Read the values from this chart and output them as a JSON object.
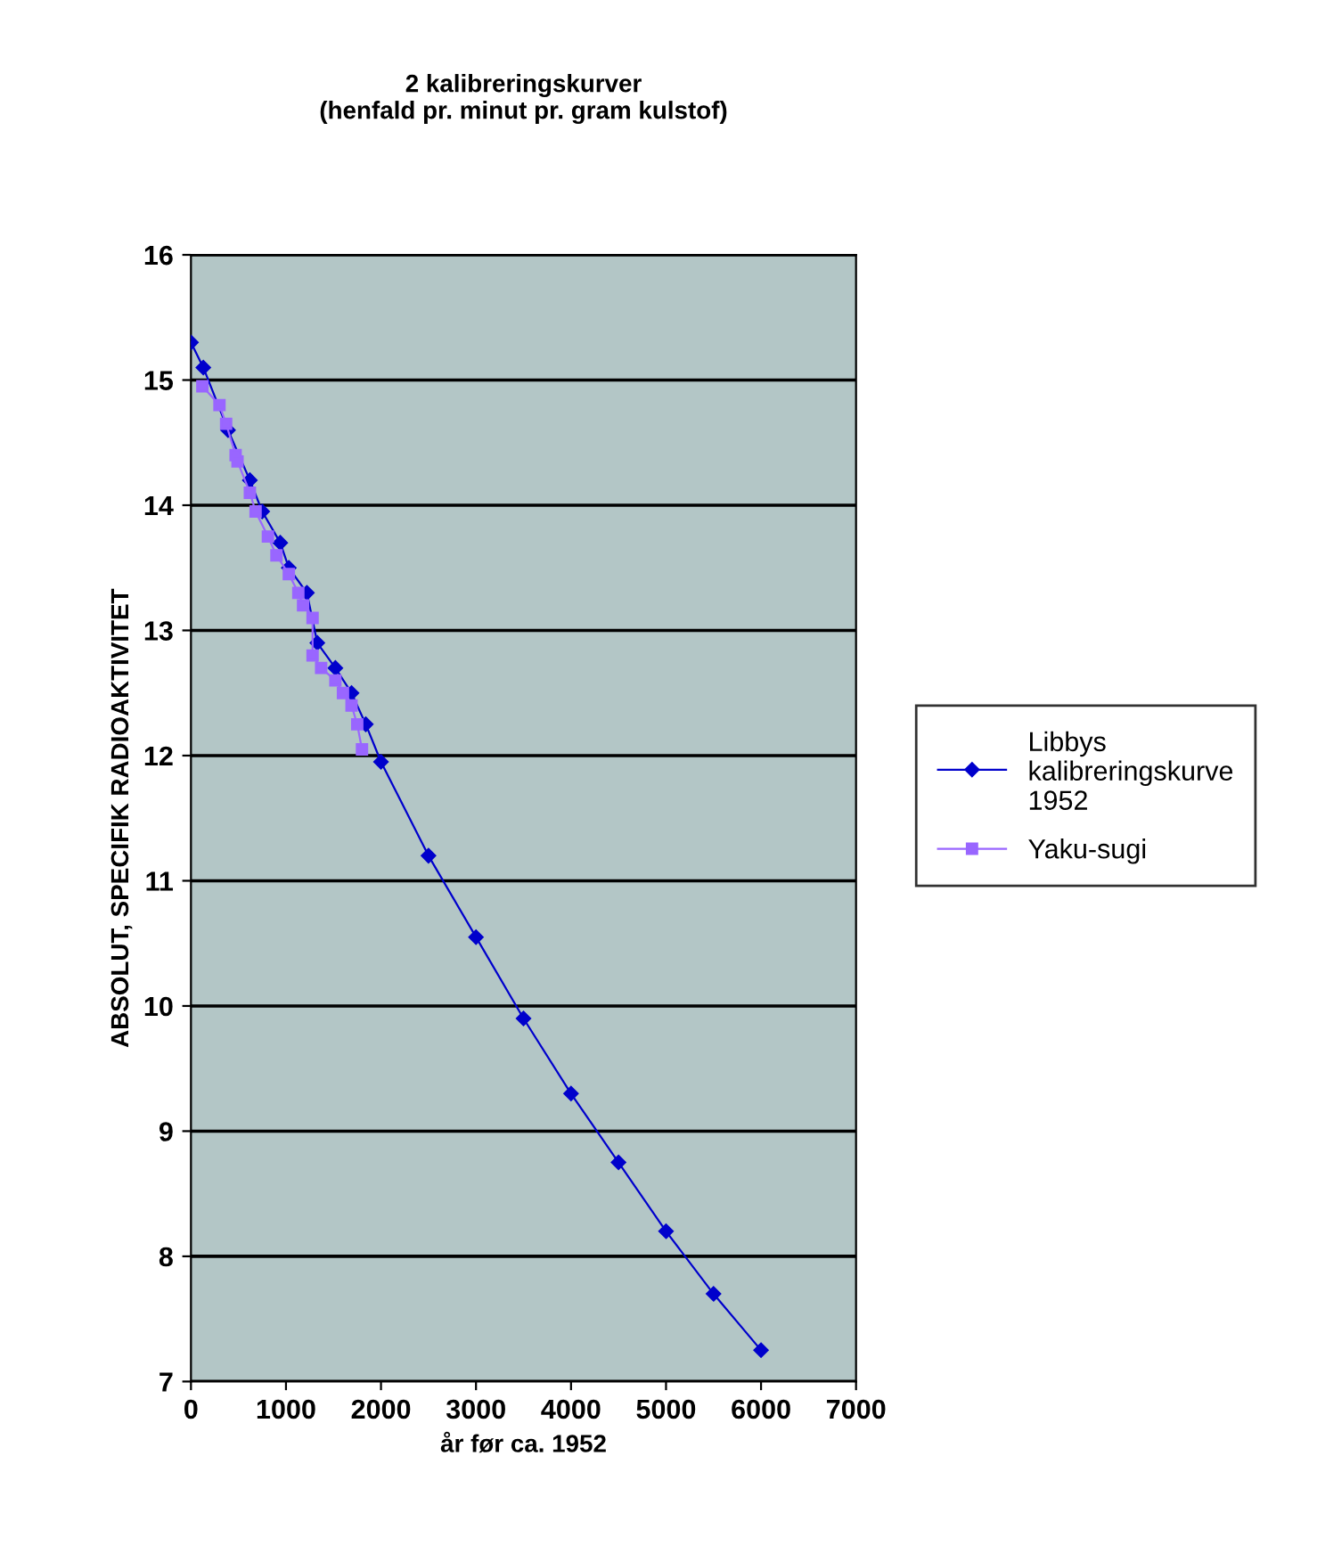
{
  "chart_data": {
    "type": "line",
    "title": "2 kalibreringskurver\n(henfald pr. minut pr. gram kulstof)",
    "xlabel": "år før ca. 1952",
    "ylabel": "ABSOLUT, SPECIFIK RADIOAKTIVITET",
    "xlim": [
      0,
      7000
    ],
    "xticks": [
      0,
      1000,
      2000,
      3000,
      4000,
      5000,
      6000,
      7000
    ],
    "ylim": [
      7,
      16
    ],
    "yticks": [
      7,
      8,
      9,
      10,
      11,
      12,
      13,
      14,
      15,
      16
    ],
    "grid": "y",
    "legend": "right",
    "series": [
      {
        "name": "Libbys kalibreringskurve 1952",
        "color": "#0000cc",
        "marker": "diamond",
        "x": [
          0,
          130,
          390,
          620,
          750,
          940,
          1030,
          1220,
          1330,
          1520,
          1690,
          1840,
          2000,
          2500,
          3000,
          3500,
          4000,
          4500,
          5000,
          5500,
          6000
        ],
        "values": [
          15.3,
          15.1,
          14.6,
          14.2,
          13.95,
          13.7,
          13.5,
          13.3,
          12.9,
          12.7,
          12.5,
          12.25,
          11.95,
          11.2,
          10.55,
          9.9,
          9.3,
          8.75,
          8.2,
          7.7,
          7.25
        ]
      },
      {
        "name": "Yaku-sugi",
        "color": "#9966ff",
        "marker": "square",
        "x": [
          120,
          300,
          370,
          470,
          490,
          620,
          680,
          810,
          900,
          1030,
          1130,
          1180,
          1280,
          1280,
          1370,
          1520,
          1600,
          1690,
          1750,
          1800
        ],
        "values": [
          14.95,
          14.8,
          14.65,
          14.4,
          14.35,
          14.1,
          13.95,
          13.75,
          13.6,
          13.45,
          13.3,
          13.2,
          13.1,
          12.8,
          12.7,
          12.6,
          12.5,
          12.4,
          12.25,
          12.05
        ]
      }
    ]
  }
}
